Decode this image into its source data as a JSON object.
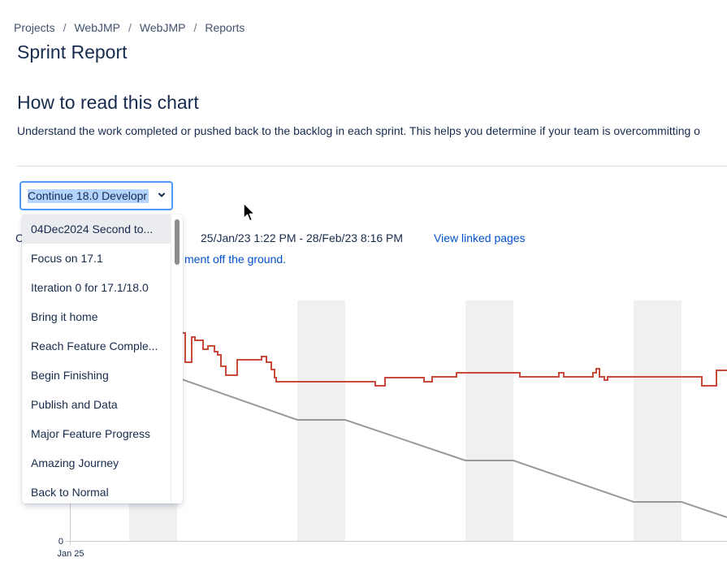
{
  "breadcrumb": [
    "Projects",
    "WebJMP",
    "WebJMP",
    "Reports"
  ],
  "page_title": "Sprint Report",
  "section_title": "How to read this chart",
  "section_desc": "Understand the work completed or pushed back to the backlog in each sprint. This helps you determine if your team is overcommitting o",
  "sprint_select": {
    "value": "Continue 18.0 Developr"
  },
  "sprint_options": [
    "04Dec2024 Second to...",
    "Focus on 17.1",
    "Iteration 0 for 17.1/18.0",
    "Bring it home",
    "Reach Feature Comple...",
    "Begin Finishing",
    "Publish and Data",
    "Major Feature Progress",
    "Amazing Journey",
    "Back to Normal"
  ],
  "meta": {
    "cut_char": "C",
    "date_range": "25/Jan/23 1:22 PM - 28/Feb/23 8:16 PM",
    "linked_pages": "View linked pages",
    "sprint_goal": "ment off the ground."
  },
  "chart_data": {
    "type": "line",
    "x_start_label": "Jan 25",
    "y_zero_label": "0",
    "colors": {
      "remaining": "#C94A3B",
      "guideline": "#999999",
      "weekend": "#F0F0F0"
    }
  }
}
